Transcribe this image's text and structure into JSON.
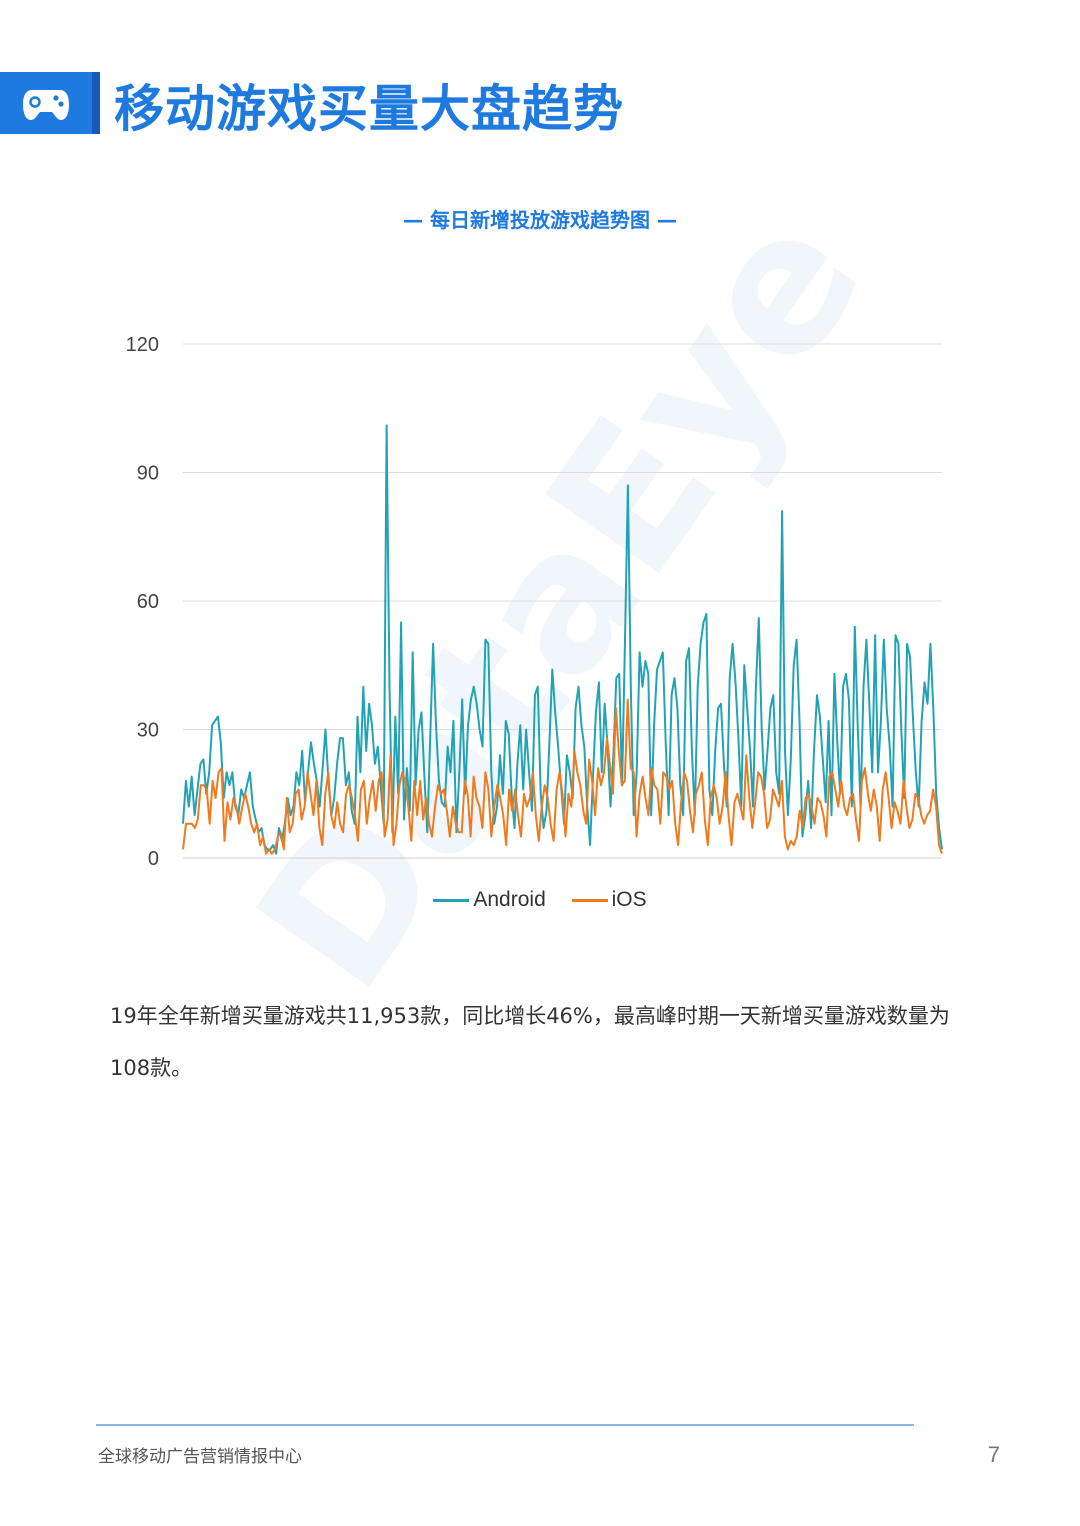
{
  "header": {
    "title": "移动游戏买量大盘趋势",
    "icon": "gamepad-icon",
    "accent_color": "#1f7ae0"
  },
  "chart_title": "— 每日新增投放游戏趋势图 —",
  "watermark": "DataEye",
  "chart_data": {
    "type": "line",
    "title": "",
    "xlabel": "",
    "ylabel": "",
    "ylim": [
      0,
      120
    ],
    "yticks": [
      0,
      30,
      60,
      90,
      120
    ],
    "grid": true,
    "legend_position": "bottom",
    "series": [
      {
        "name": "Android",
        "color": "#22a3b5",
        "values": [
          8,
          18,
          12,
          19,
          10,
          16,
          22,
          23,
          15,
          20,
          31,
          32,
          33,
          27,
          14,
          20,
          17,
          20,
          12,
          10,
          16,
          14,
          17,
          20,
          12,
          9,
          6,
          7,
          3,
          2,
          2,
          3,
          1,
          7,
          4,
          8,
          14,
          10,
          12,
          20,
          17,
          25,
          13,
          20,
          27,
          22,
          18,
          12,
          21,
          30,
          18,
          10,
          14,
          22,
          28,
          28,
          17,
          20,
          11,
          8,
          33,
          20,
          40,
          25,
          36,
          31,
          22,
          26,
          17,
          8,
          101,
          40,
          6,
          33,
          15,
          55,
          9,
          21,
          11,
          48,
          17,
          30,
          34,
          19,
          6,
          28,
          50,
          31,
          18,
          13,
          12,
          26,
          20,
          32,
          6,
          20,
          37,
          15,
          31,
          37,
          40,
          36,
          30,
          26,
          51,
          50,
          20,
          8,
          12,
          24,
          15,
          32,
          29,
          15,
          7,
          22,
          31,
          16,
          30,
          20,
          11,
          38,
          40,
          15,
          7,
          11,
          27,
          44,
          34,
          26,
          17,
          8,
          24,
          20,
          14,
          35,
          40,
          31,
          26,
          12,
          3,
          19,
          34,
          41,
          20,
          36,
          26,
          12,
          24,
          42,
          43,
          17,
          51,
          87,
          40,
          10,
          20,
          48,
          40,
          46,
          43,
          10,
          31,
          44,
          46,
          48,
          27,
          10,
          38,
          42,
          35,
          17,
          10,
          46,
          49,
          25,
          10,
          40,
          50,
          55,
          57,
          16,
          10,
          25,
          35,
          36,
          22,
          12,
          42,
          50,
          41,
          28,
          12,
          45,
          35,
          25,
          12,
          40,
          56,
          30,
          16,
          25,
          35,
          38,
          20,
          15,
          81,
          25,
          10,
          23,
          45,
          51,
          32,
          5,
          10,
          18,
          7,
          25,
          38,
          33,
          23,
          13,
          32,
          10,
          43,
          27,
          15,
          40,
          43,
          37,
          12,
          54,
          31,
          12,
          40,
          51,
          36,
          20,
          52,
          20,
          32,
          51,
          35,
          26,
          12,
          52,
          50,
          30,
          14,
          50,
          47,
          33,
          20,
          12,
          32,
          41,
          36,
          50,
          35,
          15,
          7,
          2
        ]
      },
      {
        "name": "iOS",
        "color": "#f07a1e",
        "values": [
          2,
          8,
          8,
          8,
          7,
          9,
          17,
          17,
          16,
          8,
          18,
          14,
          20,
          21,
          4,
          13,
          9,
          14,
          12,
          8,
          12,
          15,
          12,
          8,
          6,
          8,
          3,
          5,
          1,
          2,
          1,
          2,
          5,
          6,
          2,
          14,
          6,
          8,
          15,
          16,
          9,
          12,
          20,
          15,
          10,
          18,
          7,
          3,
          15,
          20,
          10,
          7,
          13,
          8,
          6,
          15,
          17,
          14,
          10,
          4,
          16,
          18,
          8,
          14,
          18,
          11,
          18,
          20,
          5,
          9,
          24,
          3,
          8,
          17,
          20,
          18,
          12,
          4,
          18,
          10,
          18,
          9,
          14,
          8,
          5,
          12,
          17,
          15,
          16,
          11,
          5,
          12,
          8,
          6,
          6,
          18,
          15,
          5,
          19,
          14,
          12,
          7,
          20,
          16,
          5,
          12,
          17,
          14,
          10,
          3,
          16,
          11,
          16,
          10,
          5,
          15,
          12,
          14,
          20,
          10,
          4,
          12,
          17,
          14,
          8,
          4,
          16,
          20,
          15,
          5,
          15,
          12,
          25,
          20,
          17,
          11,
          8,
          23,
          18,
          10,
          21,
          17,
          20,
          28,
          22,
          15,
          35,
          25,
          17,
          18,
          37,
          21,
          20,
          5,
          15,
          19,
          14,
          10,
          21,
          17,
          16,
          8,
          20,
          19,
          16,
          18,
          8,
          3,
          13,
          20,
          18,
          11,
          6,
          15,
          17,
          20,
          9,
          3,
          14,
          17,
          14,
          8,
          12,
          20,
          10,
          3,
          13,
          15,
          12,
          9,
          24,
          14,
          7,
          13,
          20,
          19,
          15,
          7,
          9,
          16,
          14,
          12,
          18,
          5,
          2,
          4,
          3,
          5,
          11,
          7,
          14,
          15,
          12,
          8,
          14,
          13,
          10,
          5,
          19,
          20,
          16,
          12,
          18,
          12,
          10,
          14,
          15,
          9,
          4,
          18,
          21,
          15,
          11,
          16,
          12,
          4,
          16,
          20,
          14,
          7,
          13,
          11,
          8,
          18,
          12,
          7,
          9,
          15,
          14,
          10,
          8,
          10,
          11,
          16,
          12,
          3,
          1
        ]
      }
    ]
  },
  "body": {
    "paragraph": "19年全年新增买量游戏共11,953款，同比增长46%，最高峰时期一天新增买量游戏数量为108款。"
  },
  "footer": {
    "org": "全球移动广告营销情报中心",
    "page_number": "7"
  }
}
